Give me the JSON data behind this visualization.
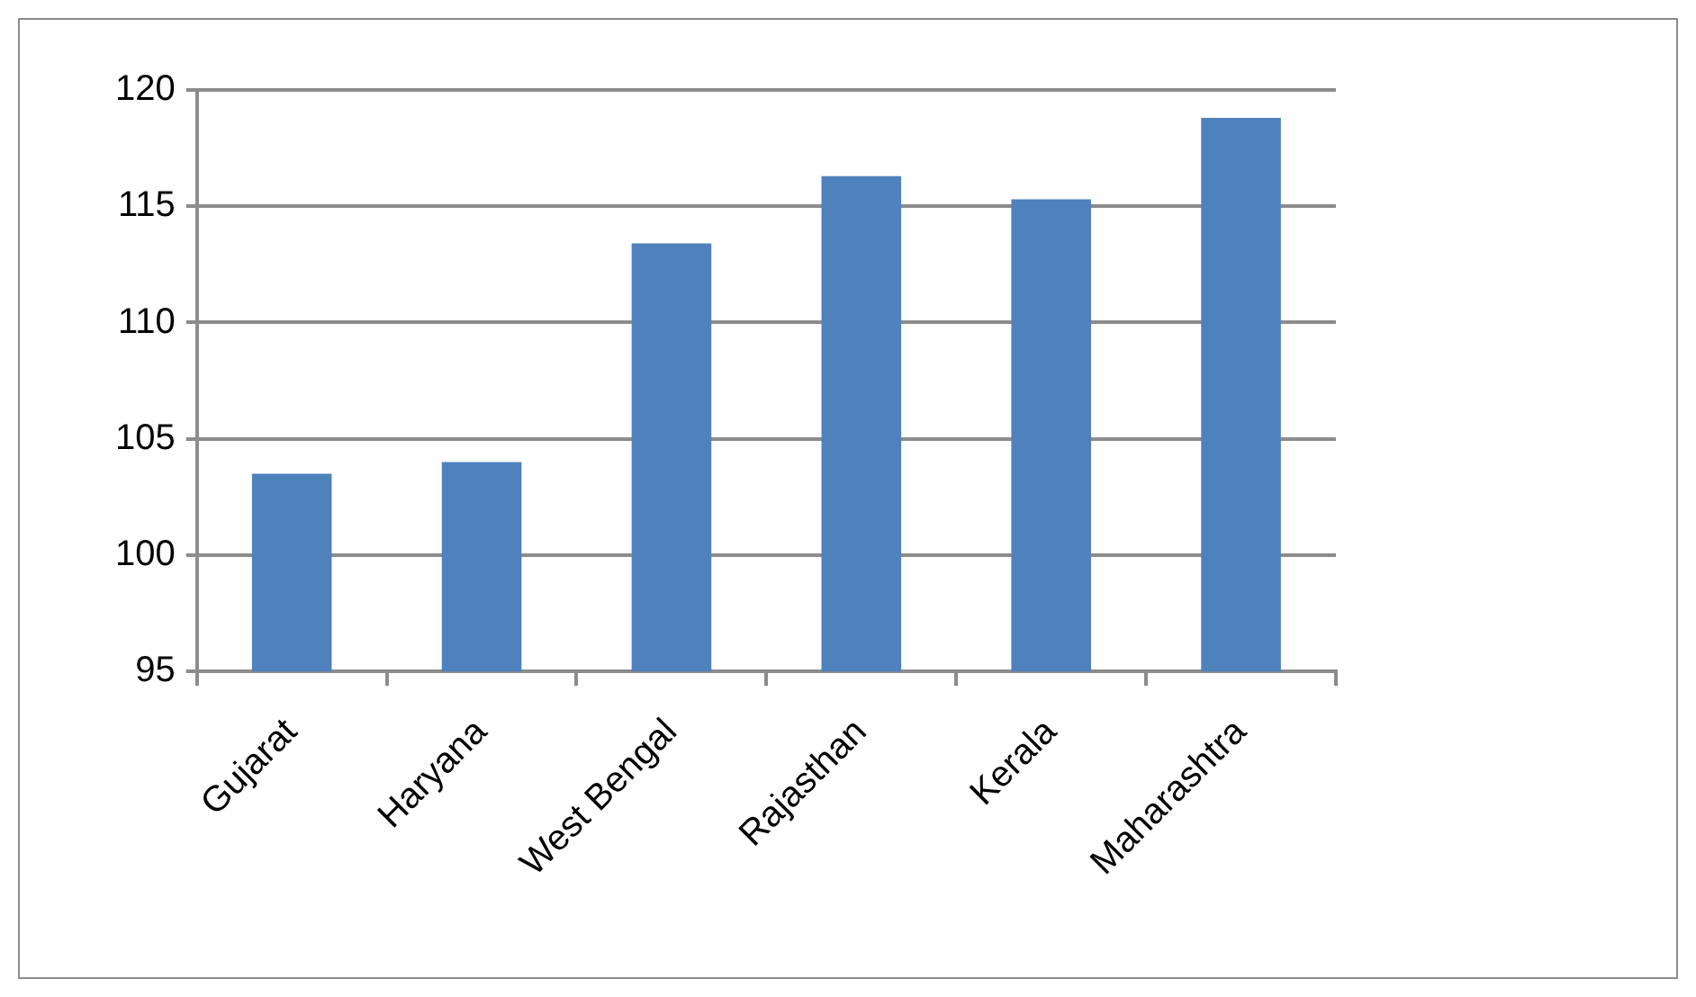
{
  "chart_data": {
    "type": "bar",
    "categories": [
      "Gujarat",
      "Haryana",
      "West Bengal",
      "Rajasthan",
      "Kerala",
      "Maharashtra"
    ],
    "values": [
      103.5,
      104,
      113.4,
      116.3,
      115.3,
      118.8
    ],
    "color": "#4f81bd",
    "ylim": [
      95,
      120
    ],
    "yticks": [
      95,
      100,
      105,
      110,
      115,
      120
    ],
    "grid": "y"
  }
}
